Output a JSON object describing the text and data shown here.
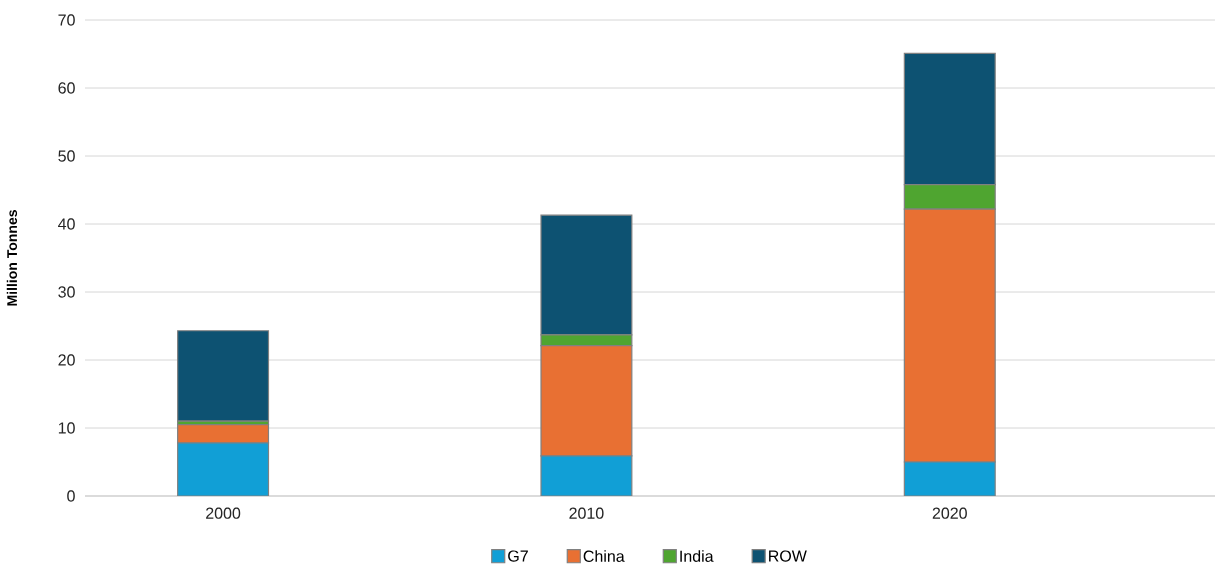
{
  "chart_data": {
    "type": "bar",
    "stacked": true,
    "ylabel": "Million Tonnes",
    "categories": [
      "2000",
      "2010",
      "2020"
    ],
    "series": [
      {
        "name": "G7",
        "color": "#119fd6",
        "values": [
          7.8,
          5.9,
          5.0
        ]
      },
      {
        "name": "China",
        "color": "#e87033",
        "values": [
          2.7,
          16.2,
          37.2
        ]
      },
      {
        "name": "India",
        "color": "#4fa530",
        "values": [
          0.5,
          1.6,
          3.6
        ]
      },
      {
        "name": "ROW",
        "color": "#0d5272",
        "values": [
          13.3,
          17.6,
          19.3
        ]
      }
    ],
    "ylim": [
      0,
      70
    ],
    "yticks": [
      0,
      10,
      20,
      30,
      40,
      50,
      60,
      70
    ],
    "grid": "y",
    "legend": "bottom"
  }
}
